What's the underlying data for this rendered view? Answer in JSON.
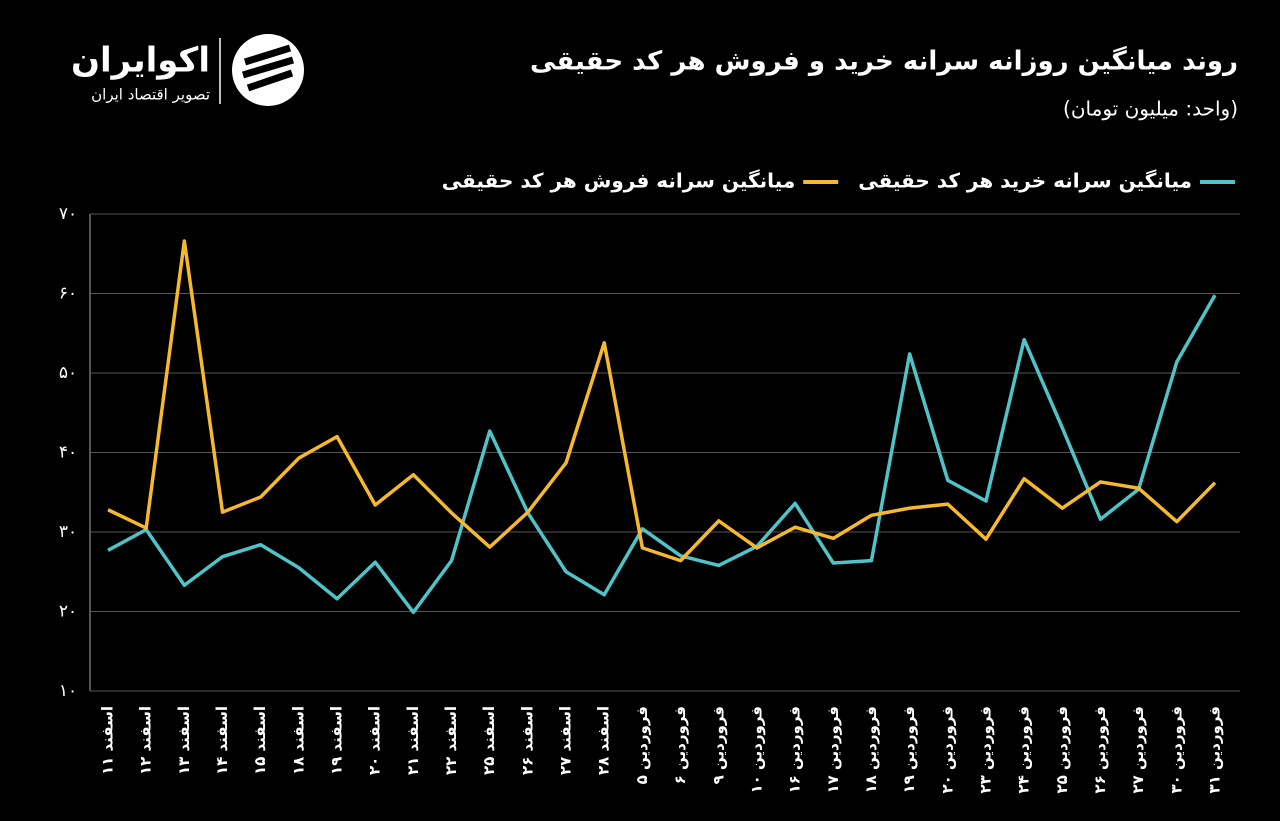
{
  "logo": {
    "name": "اکوایران",
    "tagline": "تصویر اقتصاد ایران"
  },
  "chart_data": {
    "type": "line",
    "title": "روند میانگین روزانه سرانه خرید و فروش هر کد حقیقی",
    "subtitle": "(واحد: میلیون تومان)",
    "categories": [
      "اسفند ۱۱",
      "اسفند ۱۲",
      "اسفند ۱۳",
      "اسفند ۱۴",
      "اسفند ۱۵",
      "اسفند ۱۸",
      "اسفند ۱۹",
      "اسفند ۲۰",
      "اسفند ۲۱",
      "اسفند ۲۲",
      "اسفند ۲۵",
      "اسفند ۲۶",
      "اسفند ۲۷",
      "اسفند ۲۸",
      "فروردین ۵",
      "فروردین ۶",
      "فروردین ۹",
      "فروردین ۱۰",
      "فروردین ۱۶",
      "فروردین ۱۷",
      "فروردین ۱۸",
      "فروردین ۱۹",
      "فروردین ۲۰",
      "فروردین ۲۳",
      "فروردین ۲۴",
      "فروردین ۲۵",
      "فروردین ۲۶",
      "فروردین ۲۷",
      "فروردین ۳۰",
      "فروردین ۳۱"
    ],
    "series": [
      {
        "name": "میانگین سرانه خرید هر کد حقیقی",
        "color": "#4fc3c8",
        "values": [
          27.7,
          30.3,
          23.3,
          26.9,
          28.4,
          25.5,
          21.6,
          26.2,
          19.9,
          26.4,
          42.7,
          32.4,
          25.0,
          22.1,
          30.4,
          27.0,
          25.8,
          28.2,
          33.6,
          26.1,
          26.4,
          52.4,
          36.5,
          33.9,
          54.2,
          43.1,
          31.6,
          35.4,
          51.4,
          59.8
        ]
      },
      {
        "name": "میانگین سرانه فروش هر کد حقیقی",
        "color": "#f5b82e",
        "values": [
          32.8,
          30.5,
          66.6,
          32.5,
          34.4,
          39.3,
          42.0,
          33.4,
          37.2,
          32.4,
          28.1,
          32.5,
          38.7,
          53.8,
          28.0,
          26.4,
          31.4,
          28.0,
          30.6,
          29.2,
          32.1,
          33.0,
          33.5,
          29.1,
          36.7,
          33.0,
          36.3,
          35.5,
          31.3,
          36.2
        ]
      }
    ],
    "ylim": [
      10,
      70
    ],
    "yticks": [
      {
        "value": 10,
        "label": "۱۰"
      },
      {
        "value": 20,
        "label": "۲۰"
      },
      {
        "value": 30,
        "label": "۳۰"
      },
      {
        "value": 40,
        "label": "۴۰"
      },
      {
        "value": 50,
        "label": "۵۰"
      },
      {
        "value": 60,
        "label": "۶۰"
      },
      {
        "value": 70,
        "label": "۷۰"
      }
    ],
    "grid": true
  }
}
